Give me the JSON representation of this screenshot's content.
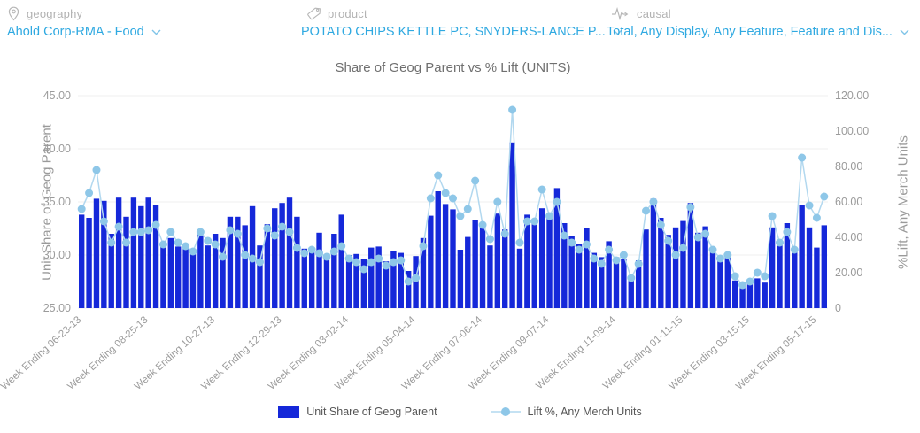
{
  "header": {
    "filters": [
      {
        "icon": "map-pin-icon",
        "label": "geography",
        "value": "Ahold Corp-RMA - Food"
      },
      {
        "icon": "tag-icon",
        "label": "product",
        "value": "POTATO CHIPS KETTLE PC, SNYDERS-LANCE P..."
      },
      {
        "icon": "pulse-icon",
        "label": "causal",
        "value": "Total, Any Display, Any Feature, Feature and Dis..."
      }
    ]
  },
  "chart_data": {
    "type": "bar",
    "title": "Share of Geog Parent vs % Lift (UNITS)",
    "grid": true,
    "legend_position": "bottom",
    "left_axis": {
      "title": "Unit Share of Geog Parent",
      "min": 25,
      "max": 45,
      "ticks": [
        "25.00",
        "30.00",
        "35.00",
        "40.00",
        "45.00"
      ]
    },
    "right_axis": {
      "title": "%Lift, Any Merch Units",
      "min": 0,
      "max": 120,
      "ticks": [
        "0",
        "20.00",
        "40.00",
        "60.00",
        "80.00",
        "100.00",
        "120.00"
      ]
    },
    "x_tick_labels": [
      {
        "index": 0,
        "label": "Week Ending 06-23-13"
      },
      {
        "index": 9,
        "label": "Week Ending 08-25-13"
      },
      {
        "index": 18,
        "label": "Week Ending 10-27-13"
      },
      {
        "index": 27,
        "label": "Week Ending 12-29-13"
      },
      {
        "index": 36,
        "label": "Week Ending 03-02-14"
      },
      {
        "index": 45,
        "label": "Week Ending 05-04-14"
      },
      {
        "index": 54,
        "label": "Week Ending 07-06-14"
      },
      {
        "index": 63,
        "label": "Week Ending 09-07-14"
      },
      {
        "index": 72,
        "label": "Week Ending 11-09-14"
      },
      {
        "index": 81,
        "label": "Week Ending 01-11-15"
      },
      {
        "index": 90,
        "label": "Week Ending 03-15-15"
      },
      {
        "index": 99,
        "label": "Week Ending 05-17-15"
      }
    ],
    "series": [
      {
        "name": "Unit Share of Geog Parent",
        "type": "bar",
        "axis": "left",
        "color": "#1528d9",
        "values": [
          33.8,
          33.5,
          35.3,
          35.1,
          32.0,
          35.4,
          33.6,
          35.4,
          34.6,
          35.4,
          34.7,
          30.8,
          31.6,
          30.8,
          30.6,
          30.1,
          32.3,
          30.9,
          32.0,
          31.6,
          33.6,
          33.6,
          32.8,
          34.6,
          30.9,
          32.9,
          34.4,
          34.9,
          35.4,
          33.6,
          30.6,
          30.3,
          32.1,
          30.0,
          32.0,
          33.8,
          30.0,
          30.1,
          29.6,
          30.7,
          30.8,
          29.4,
          30.4,
          30.2,
          28.5,
          29.9,
          31.6,
          33.7,
          36.0,
          34.8,
          34.3,
          30.5,
          31.7,
          33.3,
          32.7,
          30.9,
          33.9,
          32.4,
          40.6,
          30.6,
          33.8,
          33.0,
          34.4,
          33.5,
          36.3,
          33.0,
          31.8,
          31.0,
          32.5,
          30.2,
          29.8,
          31.3,
          29.8,
          29.6,
          27.6,
          29.5,
          32.4,
          35.3,
          33.5,
          31.9,
          32.6,
          33.2,
          34.9,
          32.1,
          32.7,
          30.6,
          29.4,
          29.8,
          27.6,
          26.9,
          27.4,
          27.8,
          27.4,
          32.6,
          30.9,
          33.0,
          30.4,
          34.7,
          32.6,
          30.7,
          32.8
        ]
      },
      {
        "name": "Lift %, Any Merch Units",
        "type": "line",
        "axis": "right",
        "color": "#b2d8ef",
        "marker_color": "#8ec7e8",
        "values": [
          56,
          65,
          78,
          49,
          37,
          46,
          37,
          43,
          43,
          44,
          47,
          36,
          43,
          37,
          35,
          32,
          43,
          38,
          36,
          29,
          44,
          42,
          30,
          28,
          26,
          45,
          41,
          46,
          43,
          34,
          31,
          33,
          31,
          29,
          32,
          35,
          28,
          26,
          22,
          26,
          28,
          24,
          26,
          27,
          15,
          17,
          35,
          62,
          75,
          65,
          62,
          52,
          56,
          72,
          47,
          39,
          60,
          42,
          112,
          37,
          49,
          49,
          67,
          52,
          60,
          41,
          37,
          33,
          36,
          28,
          25,
          33,
          27,
          30,
          17,
          25,
          55,
          60,
          47,
          38,
          30,
          34,
          57,
          40,
          42,
          33,
          28,
          30,
          18,
          13,
          15,
          20,
          18,
          52,
          37,
          43,
          33,
          85,
          58,
          51,
          63
        ]
      }
    ],
    "colors": {
      "grid": "#efefef",
      "tick_text": "#9b9b9b"
    }
  }
}
